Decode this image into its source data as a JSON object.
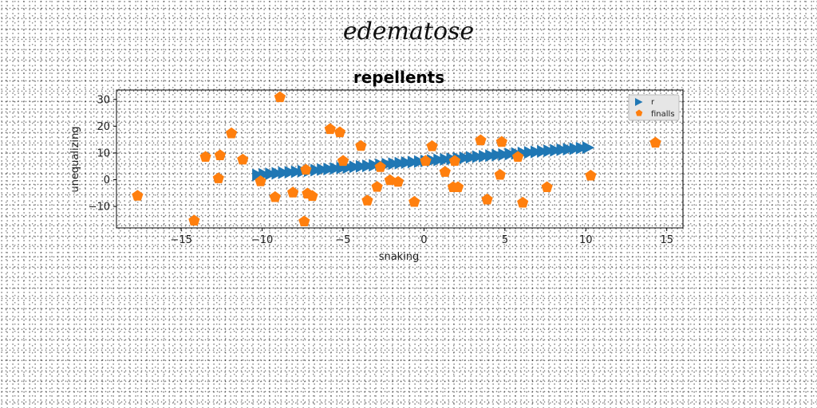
{
  "suptitle": "edematose",
  "colors": {
    "series_1": "#1f77b4",
    "series_2": "#ff7f0e"
  },
  "chart_data": {
    "type": "scatter",
    "title": "repellents",
    "xlabel": "snaking",
    "ylabel": "unequalizing",
    "xlim": [
      -19,
      16
    ],
    "ylim": [
      -18,
      33.5
    ],
    "xticks": [
      -15,
      -10,
      -5,
      0,
      5,
      10,
      15
    ],
    "yticks": [
      -10,
      0,
      10,
      20,
      30
    ],
    "grid": false,
    "legend_position": "top-right",
    "series": [
      {
        "name": "r",
        "marker": "triangle-right",
        "x": [
          -10.3,
          -9.9,
          -9.5,
          -9.1,
          -8.7,
          -8.3,
          -7.9,
          -7.5,
          -7.1,
          -6.7,
          -6.3,
          -5.9,
          -5.5,
          -5.1,
          -4.7,
          -4.3,
          -3.9,
          -3.5,
          -3.1,
          -2.7,
          -2.3,
          -1.9,
          -1.5,
          -1.1,
          -0.7,
          -0.3,
          0.1,
          0.5,
          0.9,
          1.3,
          1.7,
          2.1,
          2.5,
          2.9,
          3.3,
          3.7,
          4.1,
          4.5,
          4.9,
          5.3,
          5.7,
          6.1,
          6.5,
          6.9,
          7.3,
          7.7,
          8.1,
          8.5,
          8.9,
          9.3,
          9.7,
          10.1
        ],
        "y": [
          1.8,
          2.0,
          2.2,
          2.4,
          2.6,
          2.8,
          3.0,
          3.2,
          3.4,
          3.6,
          3.8,
          4.0,
          4.2,
          4.4,
          4.6,
          4.8,
          5.0,
          5.2,
          5.4,
          5.6,
          5.8,
          6.0,
          6.2,
          6.4,
          6.6,
          6.8,
          7.0,
          7.2,
          7.4,
          7.6,
          7.8,
          8.0,
          8.2,
          8.4,
          8.6,
          8.8,
          9.0,
          9.2,
          9.4,
          9.6,
          9.8,
          10.0,
          10.2,
          10.4,
          10.6,
          10.8,
          11.0,
          11.2,
          11.4,
          11.6,
          11.8,
          12.0
        ]
      },
      {
        "name": "finalls",
        "marker": "pentagon",
        "x": [
          -17.7,
          -14.2,
          -13.5,
          -12.7,
          -12.6,
          -11.9,
          -11.2,
          -10.1,
          -9.2,
          -8.9,
          -8.1,
          -7.4,
          -7.3,
          -7.2,
          -6.9,
          -5.8,
          -5.2,
          -5.0,
          -3.9,
          -3.5,
          -2.9,
          -2.7,
          -2.1,
          -1.6,
          -0.6,
          0.1,
          0.5,
          1.3,
          1.8,
          1.9,
          2.1,
          3.5,
          3.9,
          4.7,
          4.8,
          5.8,
          6.1,
          7.6,
          10.3,
          14.3
        ],
        "y": [
          -6.0,
          -15.3,
          8.5,
          0.5,
          9.1,
          17.3,
          7.5,
          -0.6,
          -6.5,
          30.8,
          -4.8,
          -15.6,
          3.7,
          -5.2,
          -6.1,
          18.9,
          17.7,
          7.0,
          12.6,
          -7.8,
          -2.7,
          4.7,
          -0.2,
          -0.8,
          -8.3,
          7.0,
          12.5,
          2.9,
          -2.8,
          7.0,
          -2.8,
          14.7,
          -7.4,
          1.8,
          14.1,
          8.5,
          -8.6,
          -2.8,
          1.5,
          13.8
        ]
      }
    ]
  }
}
